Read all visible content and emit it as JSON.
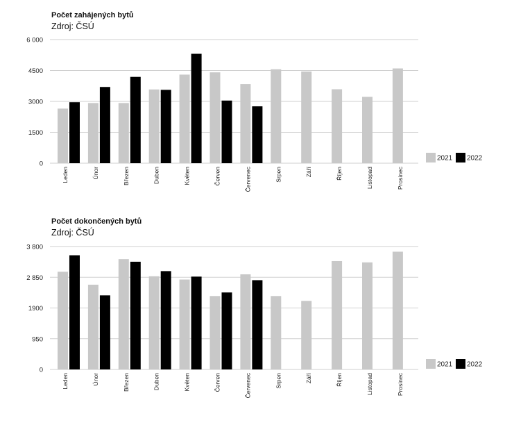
{
  "colors": {
    "series_2021": "#c8c8c8",
    "series_2022": "#000000",
    "grid": "#cfcfcf"
  },
  "chart_data": [
    {
      "type": "bar",
      "title": "Počet zahájených bytů",
      "subtitle": "Zdroj: ČSÚ",
      "categories": [
        "Leden",
        "Únor",
        "Březen",
        "Duben",
        "Květen",
        "Červen",
        "Červenec",
        "Srpen",
        "Září",
        "Říjen",
        "Listopad",
        "Prosinec"
      ],
      "series": [
        {
          "name": "2021",
          "color": "#c8c8c8",
          "values": [
            2650,
            2920,
            2920,
            3580,
            4300,
            4410,
            3840,
            4560,
            4450,
            3590,
            3220,
            4600
          ]
        },
        {
          "name": "2022",
          "color": "#000000",
          "values": [
            2960,
            3700,
            4190,
            3560,
            5310,
            3040,
            2760,
            null,
            null,
            null,
            null,
            null
          ]
        }
      ],
      "ylim": [
        0,
        6000
      ],
      "yticks": [
        0,
        1500,
        3000,
        4500,
        6000
      ],
      "ytick_labels": [
        "0",
        "1500",
        "3000",
        "4500",
        "6 000"
      ],
      "grid": true,
      "legend": "right"
    },
    {
      "type": "bar",
      "title": "Počet dokončených bytů",
      "subtitle": "Zdroj: ČSÚ",
      "categories": [
        "Leden",
        "Únor",
        "Březen",
        "Duben",
        "Květen",
        "Červen",
        "Červenec",
        "Srpen",
        "Září",
        "Říjen",
        "Listopad",
        "Prosinec"
      ],
      "series": [
        {
          "name": "2021",
          "color": "#c8c8c8",
          "values": [
            3020,
            2620,
            3410,
            2880,
            2780,
            2270,
            2940,
            2270,
            2120,
            3350,
            3310,
            3640
          ]
        },
        {
          "name": "2022",
          "color": "#000000",
          "values": [
            3530,
            2290,
            3330,
            3040,
            2870,
            2380,
            2760,
            null,
            null,
            null,
            null,
            null
          ]
        }
      ],
      "ylim": [
        0,
        3800
      ],
      "yticks": [
        0,
        950,
        1900,
        2850,
        3800
      ],
      "ytick_labels": [
        "0",
        "950",
        "1900",
        "2 850",
        "3 800"
      ],
      "grid": true,
      "legend": "right"
    }
  ]
}
